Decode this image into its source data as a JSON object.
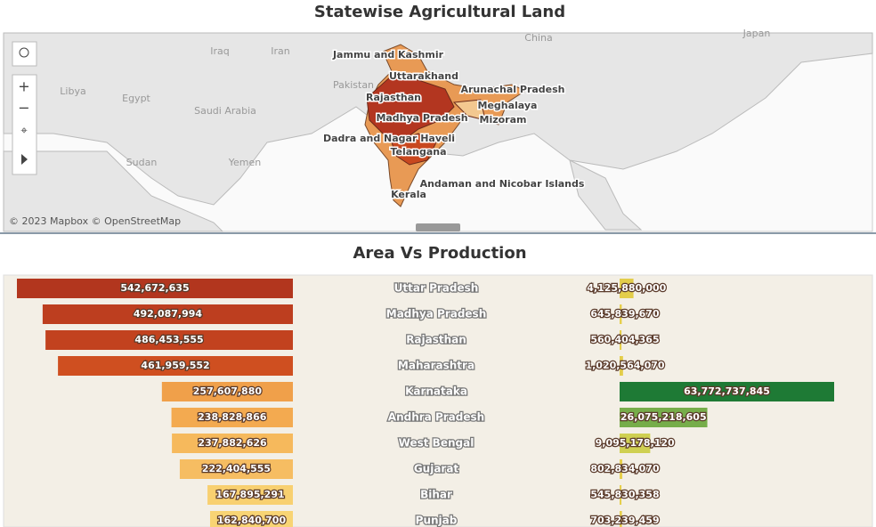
{
  "map": {
    "title": "Statewise Agricultural Land",
    "attribution": "© 2023 Mapbox © OpenStreetMap",
    "place_labels": [
      "Iran",
      "Iraq",
      "China",
      "Japan",
      "Libya",
      "Egypt",
      "Saudi Arabia",
      "Pakistan",
      "Sudan",
      "Yemen"
    ],
    "state_labels": [
      "Jammu and Kashmir",
      "Uttarakhand",
      "Arunachal Pradesh",
      "Rajasthan",
      "Meghalaya",
      "Madhya Pradesh",
      "Mizoram",
      "Dadra and Nagar Haveli",
      "Telangana",
      "Andaman and Nicobar Islands",
      "Kerala"
    ]
  },
  "chart_data": {
    "type": "diverging-bar",
    "title": "Area Vs Production",
    "categories": [
      "Uttar Pradesh",
      "Madhya Pradesh",
      "Rajasthan",
      "Maharashtra",
      "Karnataka",
      "Andhra Pradesh",
      "West Bengal",
      "Gujarat",
      "Bihar",
      "Punjab"
    ],
    "series": [
      {
        "values": [
          542672635,
          492087994,
          486453555,
          461959552,
          257607880,
          238828866,
          237882626,
          222404555,
          167895291,
          162840700
        ],
        "value_labels": [
          "542,672,635",
          "492,087,994",
          "486,453,555",
          "461,959,552",
          "257,607,880",
          "238,828,866",
          "237,882,626",
          "222,404,555",
          "167,895,291",
          "162,840,700"
        ],
        "colors": [
          "#b2361e",
          "#bd3e1f",
          "#c2421f",
          "#cf4f20",
          "#f0a04a",
          "#f3aa50",
          "#f6b95c",
          "#f6bd62",
          "#f8d070",
          "#f8d474"
        ]
      },
      {
        "values": [
          4125880000,
          645839670,
          560404365,
          1020564070,
          63772737845,
          26075218605,
          9095178120,
          802834070,
          545830358,
          703239459
        ],
        "value_labels": [
          "4,125,880,000",
          "645,839,670",
          "560,404,365",
          "1,020,564,070",
          "63,772,737,845",
          "26,075,218,605",
          "9,095,178,120",
          "802,834,070",
          "545,830,358",
          "703,239,459"
        ],
        "colors": [
          "#e3cd4a",
          "#e6cf4c",
          "#e6cf4c",
          "#e3cd4a",
          "#1e7a35",
          "#76ad4a",
          "#cfd052",
          "#e6cf4c",
          "#e6cf4c",
          "#e6cf4c"
        ]
      }
    ]
  }
}
